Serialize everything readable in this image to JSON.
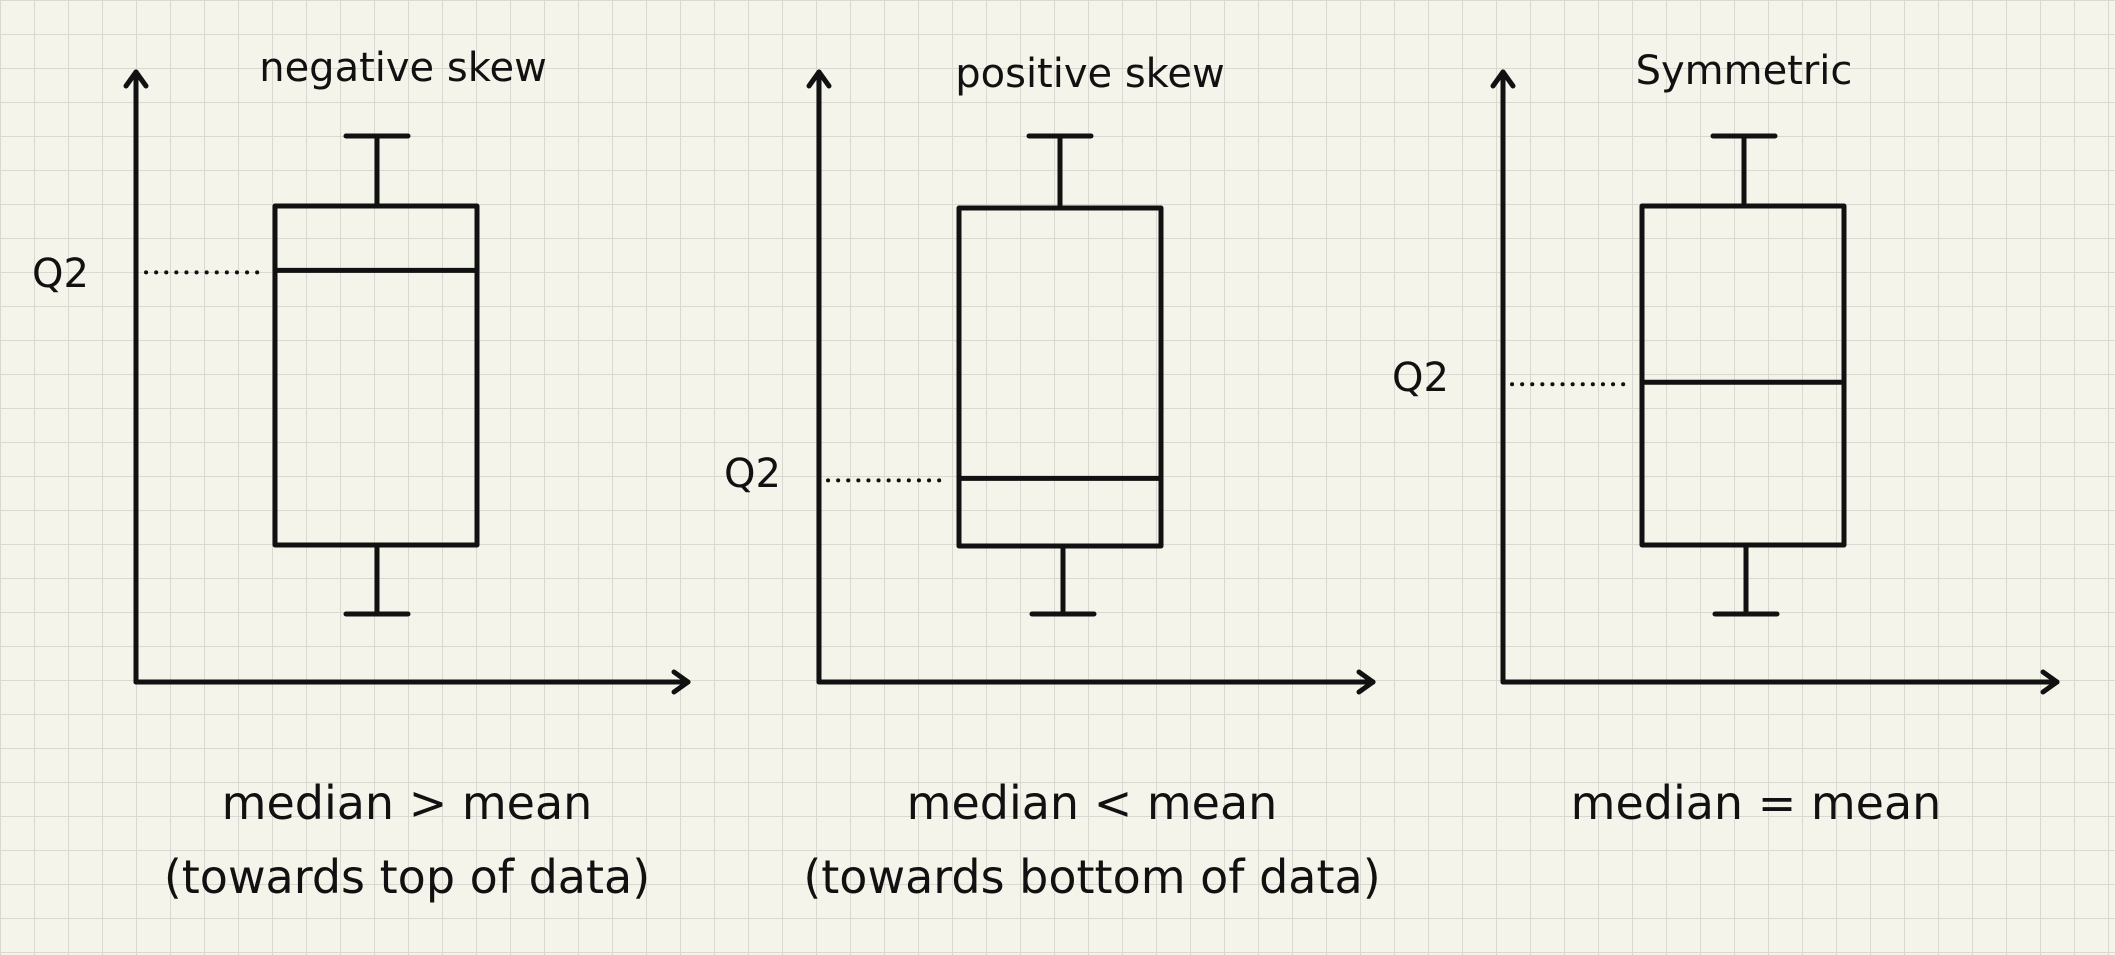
{
  "panels": [
    {
      "id": "negative",
      "title": "negative skew",
      "q2_label": "Q2",
      "caption_line1": "median > mean",
      "caption_line2": "(towards top of data)",
      "median_position": 0.81
    },
    {
      "id": "positive",
      "title": "positive skew",
      "q2_label": "Q2",
      "caption_line1": "median < mean",
      "caption_line2": "(towards bottom of data)",
      "median_position": 0.2
    },
    {
      "id": "symmetric",
      "title": "Symmetric",
      "q2_label": "Q2",
      "caption_line1": "median = mean",
      "caption_line2": "",
      "median_position": 0.48
    }
  ],
  "colors": {
    "background": "#f4f4ea",
    "grid": "#d9d9d2",
    "ink": "#111111"
  }
}
